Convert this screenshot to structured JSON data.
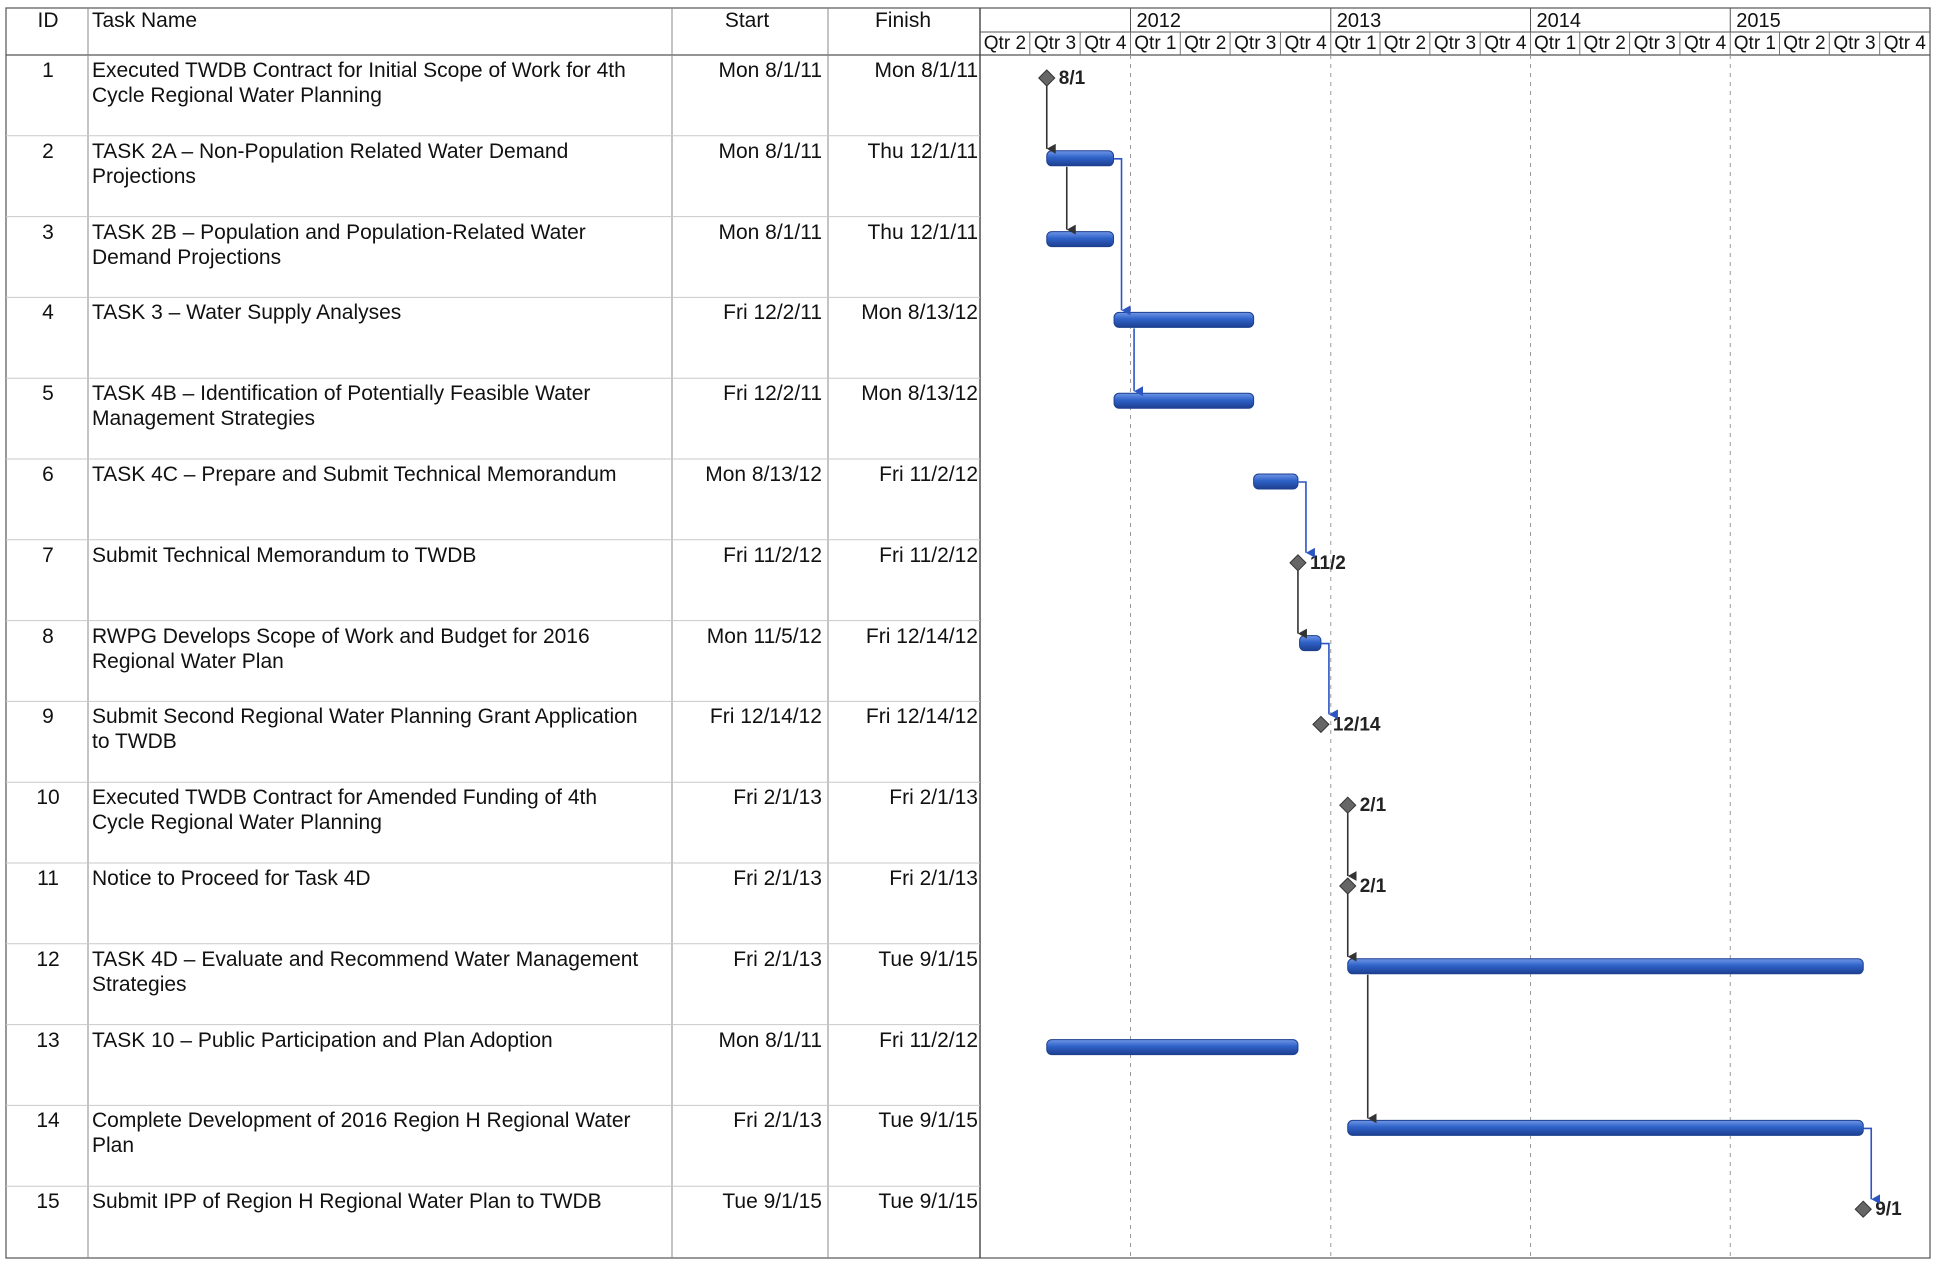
{
  "table": {
    "headers": {
      "id": "ID",
      "name": "Task Name",
      "start": "Start",
      "finish": "Finish"
    },
    "rows": [
      {
        "id": "1",
        "name_lines": [
          "Executed TWDB Contract for Initial Scope of Work for 4th",
          "Cycle Regional Water Planning"
        ],
        "start": "Mon 8/1/11",
        "finish": "Mon 8/1/11"
      },
      {
        "id": "2",
        "name_lines": [
          "TASK 2A – Non-Population Related Water Demand",
          "Projections"
        ],
        "start": "Mon 8/1/11",
        "finish": "Thu 12/1/11"
      },
      {
        "id": "3",
        "name_lines": [
          "TASK 2B – Population and Population-Related Water",
          "Demand Projections"
        ],
        "start": "Mon 8/1/11",
        "finish": "Thu 12/1/11"
      },
      {
        "id": "4",
        "name_lines": [
          "TASK 3 – Water Supply Analyses"
        ],
        "start": "Fri 12/2/11",
        "finish": "Mon 8/13/12"
      },
      {
        "id": "5",
        "name_lines": [
          "TASK 4B – Identification of Potentially Feasible Water",
          "Management Strategies"
        ],
        "start": "Fri 12/2/11",
        "finish": "Mon 8/13/12"
      },
      {
        "id": "6",
        "name_lines": [
          "TASK 4C – Prepare and Submit Technical Memorandum"
        ],
        "start": "Mon 8/13/12",
        "finish": "Fri 11/2/12"
      },
      {
        "id": "7",
        "name_lines": [
          "Submit Technical Memorandum to TWDB"
        ],
        "start": "Fri 11/2/12",
        "finish": "Fri 11/2/12"
      },
      {
        "id": "8",
        "name_lines": [
          "RWPG Develops Scope of Work and Budget for 2016",
          "Regional Water Plan"
        ],
        "start": "Mon 11/5/12",
        "finish": "Fri 12/14/12"
      },
      {
        "id": "9",
        "name_lines": [
          "Submit Second Regional Water Planning Grant Application",
          "to TWDB"
        ],
        "start": "Fri 12/14/12",
        "finish": "Fri 12/14/12"
      },
      {
        "id": "10",
        "name_lines": [
          "Executed TWDB Contract for Amended Funding of 4th",
          "Cycle Regional Water Planning"
        ],
        "start": "Fri 2/1/13",
        "finish": "Fri 2/1/13"
      },
      {
        "id": "11",
        "name_lines": [
          "Notice to Proceed for Task 4D"
        ],
        "start": "Fri 2/1/13",
        "finish": "Fri 2/1/13"
      },
      {
        "id": "12",
        "name_lines": [
          "TASK 4D – Evaluate and Recommend Water Management",
          "Strategies"
        ],
        "start": "Fri 2/1/13",
        "finish": "Tue 9/1/15"
      },
      {
        "id": "13",
        "name_lines": [
          "TASK 10 – Public Participation and Plan Adoption"
        ],
        "start": "Mon 8/1/11",
        "finish": "Fri 11/2/12"
      },
      {
        "id": "14",
        "name_lines": [
          "Complete Development of 2016 Region H Regional Water",
          "Plan"
        ],
        "start": "Fri 2/1/13",
        "finish": "Tue 9/1/15"
      },
      {
        "id": "15",
        "name_lines": [
          "Submit IPP of Region H Regional Water Plan to TWDB"
        ],
        "start": "Tue 9/1/15",
        "finish": "Tue 9/1/15"
      }
    ]
  },
  "chart_data": {
    "type": "gantt",
    "time_range": [
      "2011-04-01",
      "2016-01-01"
    ],
    "years": [
      "2012",
      "2013",
      "2014",
      "2015"
    ],
    "quarter_labels": [
      "Qtr 2",
      "Qtr 3",
      "Qtr 4",
      "Qtr 1",
      "Qtr 2",
      "Qtr 3",
      "Qtr 4",
      "Qtr 1",
      "Qtr 2",
      "Qtr 3",
      "Qtr 4",
      "Qtr 1",
      "Qtr 2",
      "Qtr 3",
      "Qtr 4",
      "Qtr 1",
      "Qtr 2",
      "Qtr 3",
      "Qtr 4"
    ],
    "tasks": [
      {
        "id": 1,
        "start": "2011-08-01",
        "finish": "2011-08-01",
        "milestone": true,
        "label": "8/1"
      },
      {
        "id": 2,
        "start": "2011-08-01",
        "finish": "2011-12-01",
        "milestone": false
      },
      {
        "id": 3,
        "start": "2011-08-01",
        "finish": "2011-12-01",
        "milestone": false
      },
      {
        "id": 4,
        "start": "2011-12-02",
        "finish": "2012-08-13",
        "milestone": false
      },
      {
        "id": 5,
        "start": "2011-12-02",
        "finish": "2012-08-13",
        "milestone": false
      },
      {
        "id": 6,
        "start": "2012-08-13",
        "finish": "2012-11-02",
        "milestone": false
      },
      {
        "id": 7,
        "start": "2012-11-02",
        "finish": "2012-11-02",
        "milestone": true,
        "label": "11/2"
      },
      {
        "id": 8,
        "start": "2012-11-05",
        "finish": "2012-12-14",
        "milestone": false
      },
      {
        "id": 9,
        "start": "2012-12-14",
        "finish": "2012-12-14",
        "milestone": true,
        "label": "12/14"
      },
      {
        "id": 10,
        "start": "2013-02-01",
        "finish": "2013-02-01",
        "milestone": true,
        "label": "2/1"
      },
      {
        "id": 11,
        "start": "2013-02-01",
        "finish": "2013-02-01",
        "milestone": true,
        "label": "2/1"
      },
      {
        "id": 12,
        "start": "2013-02-01",
        "finish": "2015-09-01",
        "milestone": false
      },
      {
        "id": 13,
        "start": "2011-08-01",
        "finish": "2012-11-02",
        "milestone": false
      },
      {
        "id": 14,
        "start": "2013-02-01",
        "finish": "2015-09-01",
        "milestone": false
      },
      {
        "id": 15,
        "start": "2015-09-01",
        "finish": "2015-09-01",
        "milestone": true,
        "label": "9/1"
      }
    ],
    "links": [
      {
        "from": 1,
        "to": 2,
        "color": "#333333"
      },
      {
        "from": 2,
        "to": 3,
        "color": "#333333"
      },
      {
        "from": 2,
        "to": 4,
        "color": "#2b55c2"
      },
      {
        "from": 4,
        "to": 5,
        "color": "#2b55c2"
      },
      {
        "from": 6,
        "to": 7,
        "color": "#2b55c2"
      },
      {
        "from": 7,
        "to": 8,
        "color": "#333333"
      },
      {
        "from": 8,
        "to": 9,
        "color": "#2b55c2"
      },
      {
        "from": 10,
        "to": 11,
        "color": "#333333"
      },
      {
        "from": 11,
        "to": 12,
        "color": "#333333"
      },
      {
        "from": 12,
        "to": 14,
        "color": "#333333"
      },
      {
        "from": 14,
        "to": 15,
        "color": "#2b55c2"
      }
    ],
    "colors": {
      "bar": "#2f62c8",
      "bar_dark": "#1d3f8f",
      "milestone": "#666666",
      "grid": "#9a9a9a"
    }
  }
}
